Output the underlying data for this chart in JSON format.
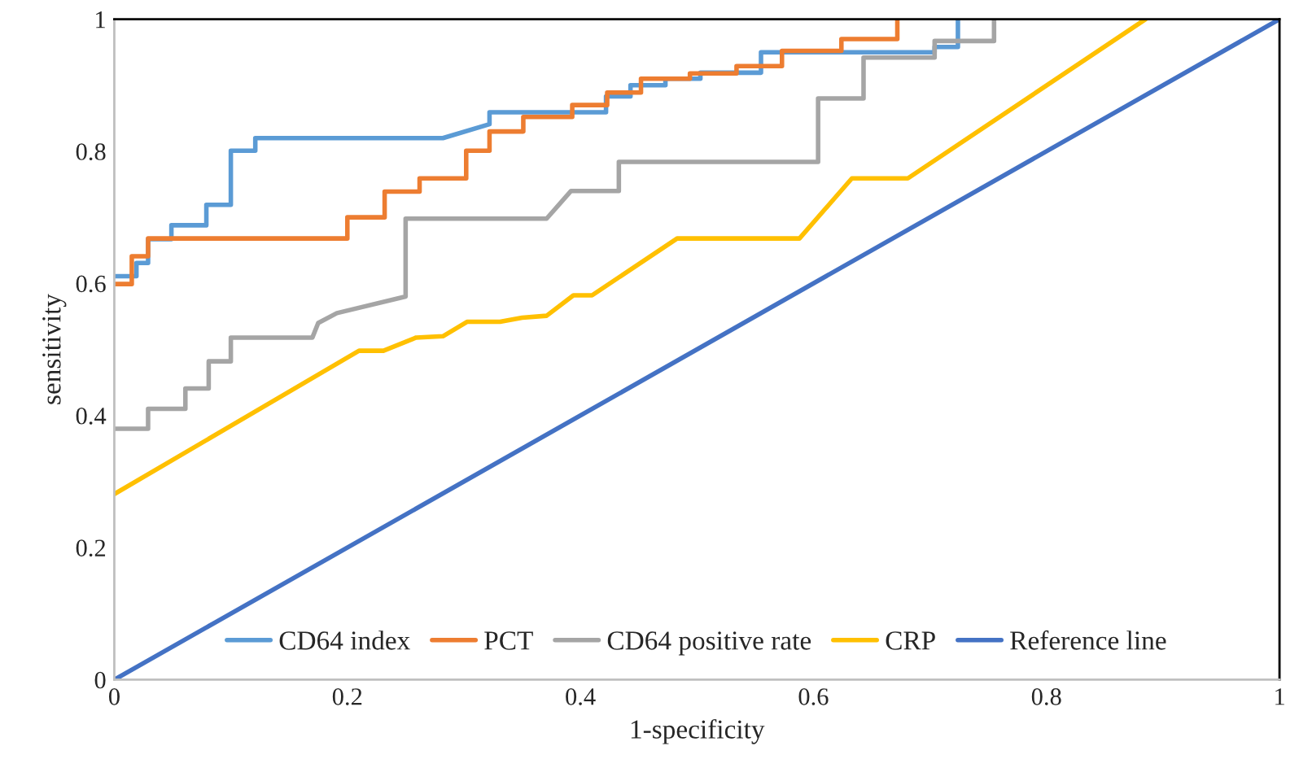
{
  "chart_data": {
    "type": "line",
    "xlabel": "1-specificity",
    "ylabel": "sensitivity",
    "xlim": [
      0,
      1
    ],
    "ylim": [
      0,
      1
    ],
    "xticks": [
      0,
      0.2,
      0.4,
      0.6,
      0.8,
      1
    ],
    "yticks": [
      0,
      0.2,
      0.4,
      0.6,
      0.8,
      1
    ],
    "grid": false,
    "legend": "bottom",
    "marker": "none",
    "line_style": "solid",
    "series": [
      {
        "name": "CD64 index",
        "color": "#5b9bd5",
        "x": [
          0,
          0.019,
          0.019,
          0.029,
          0.029,
          0.049,
          0.049,
          0.079,
          0.079,
          0.1,
          0.1,
          0.121,
          0.121,
          0.282,
          0.322,
          0.322,
          0.422,
          0.422,
          0.443,
          0.443,
          0.473,
          0.473,
          0.503,
          0.503,
          0.555,
          0.555,
          0.704,
          0.704,
          0.724,
          0.724
        ],
        "values": [
          0.611,
          0.611,
          0.631,
          0.631,
          0.667,
          0.667,
          0.688,
          0.688,
          0.719,
          0.719,
          0.801,
          0.801,
          0.82,
          0.82,
          0.841,
          0.859,
          0.859,
          0.883,
          0.883,
          0.9,
          0.9,
          0.91,
          0.91,
          0.919,
          0.919,
          0.95,
          0.95,
          0.958,
          0.958,
          1.0
        ]
      },
      {
        "name": "PCT",
        "color": "#ed7d31",
        "x": [
          0,
          0.015,
          0.015,
          0.029,
          0.029,
          0.2,
          0.2,
          0.232,
          0.232,
          0.262,
          0.262,
          0.302,
          0.302,
          0.322,
          0.322,
          0.351,
          0.351,
          0.393,
          0.393,
          0.423,
          0.423,
          0.452,
          0.452,
          0.494,
          0.494,
          0.534,
          0.534,
          0.573,
          0.573,
          0.624,
          0.624,
          0.672,
          0.672
        ],
        "values": [
          0.599,
          0.599,
          0.641,
          0.641,
          0.668,
          0.668,
          0.7,
          0.7,
          0.739,
          0.739,
          0.759,
          0.759,
          0.801,
          0.801,
          0.83,
          0.83,
          0.852,
          0.852,
          0.87,
          0.87,
          0.889,
          0.889,
          0.91,
          0.91,
          0.918,
          0.918,
          0.929,
          0.929,
          0.952,
          0.952,
          0.97,
          0.97,
          1.0
        ]
      },
      {
        "name": "CD64 positive rate",
        "color": "#a5a5a5",
        "x": [
          0,
          0.029,
          0.029,
          0.061,
          0.061,
          0.081,
          0.081,
          0.1,
          0.1,
          0.17,
          0.175,
          0.191,
          0.25,
          0.25,
          0.371,
          0.392,
          0.433,
          0.433,
          0.604,
          0.604,
          0.643,
          0.643,
          0.704,
          0.704,
          0.755,
          0.755
        ],
        "values": [
          0.38,
          0.38,
          0.41,
          0.41,
          0.441,
          0.441,
          0.482,
          0.482,
          0.518,
          0.518,
          0.54,
          0.555,
          0.58,
          0.698,
          0.698,
          0.74,
          0.74,
          0.784,
          0.784,
          0.88,
          0.88,
          0.942,
          0.942,
          0.967,
          0.967,
          1.0
        ]
      },
      {
        "name": "CRP",
        "color": "#ffc000",
        "x": [
          0,
          0.21,
          0.231,
          0.259,
          0.282,
          0.303,
          0.331,
          0.35,
          0.371,
          0.394,
          0.41,
          0.483,
          0.588,
          0.633,
          0.681,
          0.885
        ],
        "values": [
          0.281,
          0.498,
          0.498,
          0.518,
          0.52,
          0.542,
          0.542,
          0.548,
          0.551,
          0.582,
          0.582,
          0.668,
          0.668,
          0.759,
          0.759,
          1.0
        ]
      },
      {
        "name": "Reference line",
        "color": "#4472c4",
        "x": [
          0,
          1
        ],
        "values": [
          0,
          1
        ]
      }
    ]
  }
}
